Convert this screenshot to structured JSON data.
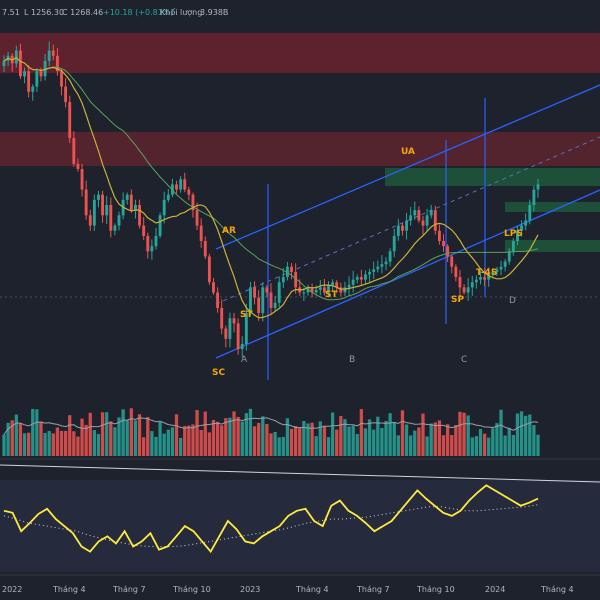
{
  "header": {
    "h_text": "7.51",
    "l_text": "L 1256.30",
    "c_text": "C 1268.46",
    "chg_text": "+10.18 (+0.81%)",
    "vol_label": "Khối lượng",
    "vol_value": "3.938B"
  },
  "colors": {
    "background": "#1e222d",
    "up": "#26a69a",
    "down": "#ef5350",
    "ma_fast": "#c9b13a",
    "ma_slow": "#5aa35a",
    "channel": "#2962ff",
    "oscillator": "#ffeb3b",
    "annotation": "#f7a600",
    "resistance_zone": "#7f2430",
    "support_zone": "#1f5f3c"
  },
  "chart_data": [
    {
      "type": "candlestick",
      "panel": "price",
      "x_unit": "week",
      "x_range": [
        "2021-12",
        "2024-04"
      ],
      "y_range": [
        880,
        1560
      ],
      "closes": [
        1500,
        1510,
        1495,
        1520,
        1470,
        1480,
        1440,
        1450,
        1480,
        1470,
        1500,
        1520,
        1510,
        1480,
        1450,
        1420,
        1350,
        1300,
        1290,
        1250,
        1200,
        1180,
        1230,
        1240,
        1200,
        1220,
        1170,
        1180,
        1200,
        1230,
        1240,
        1210,
        1220,
        1180,
        1160,
        1130,
        1140,
        1160,
        1200,
        1230,
        1240,
        1260,
        1250,
        1270,
        1250,
        1240,
        1210,
        1180,
        1150,
        1120,
        1070,
        1050,
        1020,
        980,
        960,
        1000,
        990,
        940,
        950,
        1010,
        1060,
        1040,
        1010,
        1060,
        1050,
        1020,
        1030,
        1070,
        1080,
        1100,
        1090,
        1060,
        1050,
        1050,
        1060,
        1050,
        1055,
        1060,
        1050,
        1065,
        1070,
        1060,
        1050,
        1060,
        1065,
        1075,
        1080,
        1075,
        1085,
        1090,
        1095,
        1100,
        1105,
        1110,
        1130,
        1160,
        1180,
        1170,
        1190,
        1200,
        1210,
        1190,
        1180,
        1200,
        1210,
        1170,
        1150,
        1140,
        1120,
        1100,
        1080,
        1060,
        1050,
        1060,
        1070,
        1075,
        1080,
        1075,
        1085,
        1090,
        1095,
        1100,
        1110,
        1130,
        1150,
        1170,
        1180,
        1190,
        1220,
        1250,
        1260
      ],
      "markers": [
        "AR",
        "ST",
        "ST",
        "SC",
        "UA",
        "SP",
        "T-4S",
        "LPS"
      ],
      "phase_labels": [
        "A",
        "B",
        "C",
        "D"
      ]
    },
    {
      "type": "bar",
      "panel": "volume"
    },
    {
      "type": "line",
      "panel": "oscillator",
      "series": [
        {
          "values": [
            60,
            58,
            40,
            48,
            57,
            62,
            52,
            45,
            38,
            25,
            20,
            30,
            35,
            28,
            40,
            25,
            30,
            38,
            22,
            25,
            35,
            45,
            40,
            30,
            20,
            35,
            50,
            42,
            30,
            28,
            35,
            40,
            45,
            55,
            60,
            62,
            50,
            45,
            65,
            70,
            60,
            55,
            48,
            40,
            45,
            50,
            60,
            70,
            80,
            72,
            65,
            58,
            55,
            60,
            70,
            78,
            85,
            80,
            75,
            70,
            65,
            68,
            72
          ]
        },
        {
          "style": "dotted",
          "values": [
            55,
            52,
            48,
            46,
            44,
            42,
            40,
            36,
            33,
            30,
            28,
            26,
            25,
            25,
            25,
            26,
            28,
            30,
            32,
            34,
            36,
            38,
            40,
            42,
            45,
            48,
            50,
            52,
            52,
            53,
            54,
            56,
            58,
            60,
            62,
            64,
            64,
            62,
            60,
            60,
            61,
            62,
            63,
            64,
            66
          ]
        }
      ]
    }
  ],
  "x_axis": {
    "ticks": [
      "2022",
      "Tháng 4",
      "Tháng 7",
      "Tháng 10",
      "2023",
      "Tháng 4",
      "Tháng 7",
      "Tháng 10",
      "2024",
      "Tháng 4"
    ]
  }
}
